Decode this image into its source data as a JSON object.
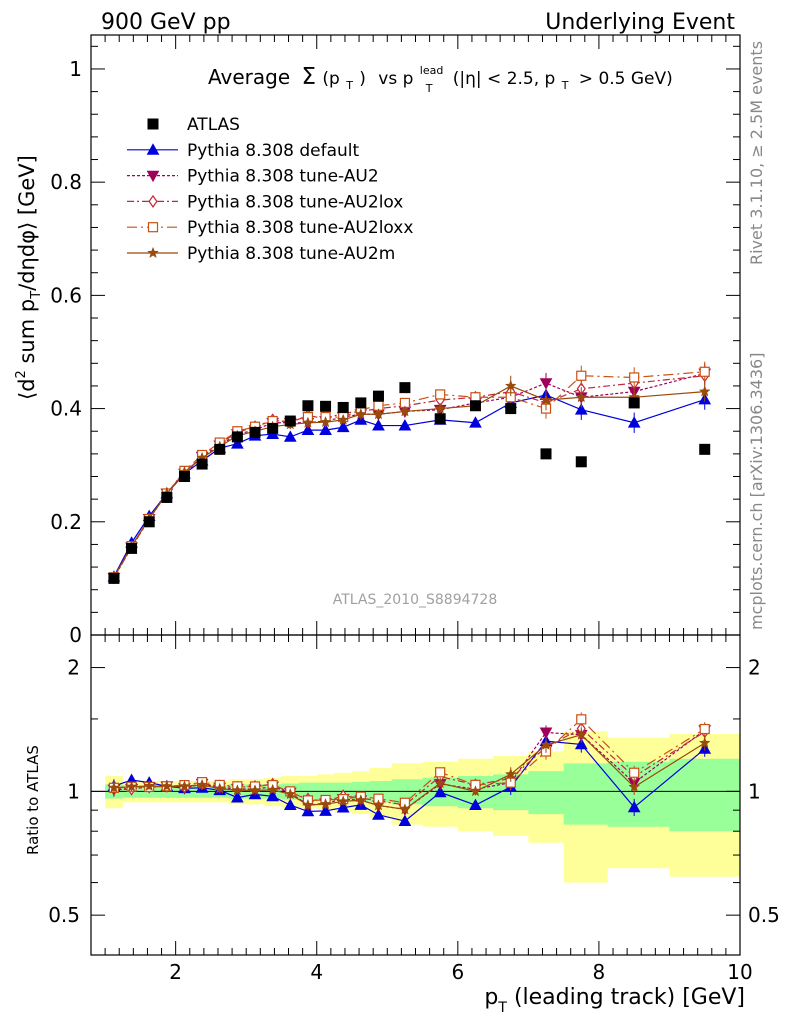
{
  "header": {
    "left": "900 GeV pp",
    "right": "Underlying Event"
  },
  "side": {
    "rivet": "Rivet 3.1.10, ≥ 2.5M events",
    "mcplots": "mcplots.cern.ch [arXiv:1306.3436]"
  },
  "plot_title": {
    "prefix": "Average",
    "sigma": "Σ",
    "pt_open": "(p",
    "t_sub": "T",
    "pt_close": ")",
    "vs": "vs p",
    "lead_sup": "lead",
    "cut_open": "(|η| < 2.5, p",
    "cut_close": "> 0.5 GeV)"
  },
  "watermark": "ATLAS_2010_S8894728",
  "axes": {
    "ylabel_main": {
      "p1": "⟨d",
      "sup2": "2",
      "p2": " sum p",
      "subT": "T",
      "p3": "/dηdφ⟩ [GeV]"
    },
    "ylabel_ratio": "Ratio to ATLAS",
    "xlabel": {
      "p": "p",
      "subT": "T",
      "rest": " (leading track) [GeV]"
    },
    "main_yticks": [
      "0",
      "0.2",
      "0.4",
      "0.6",
      "0.8",
      "1"
    ],
    "ratio_yticks": [
      "0.5",
      "1",
      "2"
    ],
    "xticks": [
      "2",
      "4",
      "6",
      "8",
      "10"
    ]
  },
  "chart_data": {
    "type": "scatter",
    "x": [
      1.125,
      1.375,
      1.625,
      1.875,
      2.125,
      2.375,
      2.625,
      2.875,
      3.125,
      3.375,
      3.625,
      3.875,
      4.125,
      4.375,
      4.625,
      4.875,
      5.25,
      5.75,
      6.25,
      6.75,
      7.25,
      7.75,
      8.5,
      9.5
    ],
    "xlim": [
      0.8,
      10.0
    ],
    "ylim": [
      0,
      1.06
    ],
    "ratio_ylim": [
      0.4,
      2.4
    ],
    "ratio_scale": "log",
    "grid": false,
    "legend_position": "top-left",
    "data": {
      "name": "ATLAS",
      "values": [
        0.1,
        0.153,
        0.2,
        0.243,
        0.28,
        0.302,
        0.328,
        0.35,
        0.358,
        0.365,
        0.378,
        0.405,
        0.404,
        0.402,
        0.41,
        0.422,
        0.437,
        0.382,
        0.405,
        0.4,
        0.32,
        0.306,
        0.41,
        0.328
      ]
    },
    "band_green": [
      0.04,
      0.035,
      0.035,
      0.035,
      0.035,
      0.035,
      0.035,
      0.04,
      0.04,
      0.04,
      0.045,
      0.05,
      0.05,
      0.05,
      0.055,
      0.06,
      0.07,
      0.08,
      0.09,
      0.1,
      0.12,
      0.17,
      0.18,
      0.2
    ],
    "band_yellow": [
      0.09,
      0.06,
      0.06,
      0.06,
      0.06,
      0.06,
      0.06,
      0.07,
      0.07,
      0.08,
      0.09,
      0.09,
      0.1,
      0.11,
      0.12,
      0.14,
      0.17,
      0.18,
      0.2,
      0.22,
      0.25,
      0.4,
      0.35,
      0.38
    ],
    "series": [
      {
        "name": "Pythia 8.308 default",
        "color": "#0000dd",
        "marker": "triangle-up",
        "dash": "",
        "values": [
          0.103,
          0.163,
          0.21,
          0.25,
          0.285,
          0.308,
          0.33,
          0.338,
          0.352,
          0.355,
          0.35,
          0.362,
          0.362,
          0.367,
          0.38,
          0.37,
          0.37,
          0.38,
          0.375,
          0.41,
          0.424,
          0.398,
          0.375,
          0.416
        ]
      },
      {
        "name": "Pythia 8.308 tune-AU2",
        "color": "#a0005a",
        "marker": "triangle-down",
        "dash": "3,2",
        "values": [
          0.101,
          0.155,
          0.205,
          0.25,
          0.285,
          0.315,
          0.335,
          0.355,
          0.362,
          0.375,
          0.375,
          0.375,
          0.378,
          0.385,
          0.39,
          0.39,
          0.395,
          0.398,
          0.41,
          0.42,
          0.445,
          0.42,
          0.43,
          0.462
        ]
      },
      {
        "name": "Pythia 8.308 tune-AU2lox",
        "color": "#c0283c",
        "marker": "diamond-open",
        "dash": "7,3,2,3",
        "values": [
          0.102,
          0.155,
          0.205,
          0.25,
          0.287,
          0.315,
          0.338,
          0.358,
          0.368,
          0.38,
          0.375,
          0.388,
          0.382,
          0.392,
          0.395,
          0.4,
          0.405,
          0.415,
          0.42,
          0.43,
          0.41,
          0.435,
          0.445,
          0.458
        ]
      },
      {
        "name": "Pythia 8.308 tune-AU2loxx",
        "color": "#c85014",
        "marker": "square-open",
        "dash": "10,4,2,4",
        "values": [
          0.102,
          0.157,
          0.205,
          0.25,
          0.29,
          0.318,
          0.34,
          0.36,
          0.368,
          0.378,
          0.378,
          0.385,
          0.385,
          0.385,
          0.398,
          0.405,
          0.41,
          0.425,
          0.42,
          0.42,
          0.4,
          0.458,
          0.455,
          0.465
        ]
      },
      {
        "name": "Pythia 8.308 tune-AU2m",
        "color": "#9a4a0a",
        "marker": "star",
        "dash": "",
        "values": [
          0.102,
          0.157,
          0.206,
          0.25,
          0.288,
          0.313,
          0.333,
          0.352,
          0.36,
          0.368,
          0.372,
          0.375,
          0.376,
          0.38,
          0.39,
          0.39,
          0.395,
          0.4,
          0.405,
          0.44,
          0.415,
          0.42,
          0.42,
          0.43
        ]
      }
    ]
  }
}
